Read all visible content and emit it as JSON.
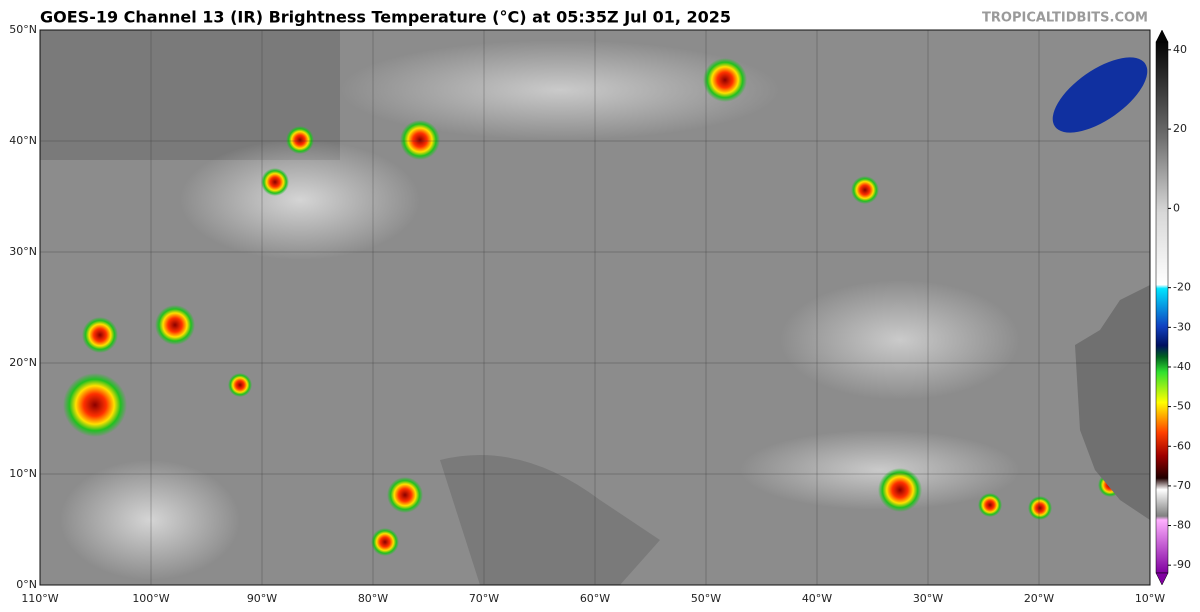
{
  "header": {
    "title": "GOES-19 Channel 13 (IR) Brightness Temperature (°C) at 05:35Z Jul 01, 2025",
    "credit": "TROPICALTIDBITS.COM"
  },
  "map": {
    "xlim": [
      -110,
      -10
    ],
    "ylim": [
      0,
      50
    ],
    "grid": true,
    "lat_labels": [
      {
        "value": 0,
        "label": "0°N"
      },
      {
        "value": 10,
        "label": "10°N"
      },
      {
        "value": 20,
        "label": "20°N"
      },
      {
        "value": 30,
        "label": "30°N"
      },
      {
        "value": 40,
        "label": "40°N"
      },
      {
        "value": 50,
        "label": "50°N"
      }
    ],
    "lon_labels": [
      {
        "value": -110,
        "label": "110°W"
      },
      {
        "value": -100,
        "label": "100°W"
      },
      {
        "value": -90,
        "label": "90°W"
      },
      {
        "value": -80,
        "label": "80°W"
      },
      {
        "value": -70,
        "label": "70°W"
      },
      {
        "value": -60,
        "label": "60°W"
      },
      {
        "value": -50,
        "label": "50°W"
      },
      {
        "value": -40,
        "label": "40°W"
      },
      {
        "value": -30,
        "label": "30°W"
      },
      {
        "value": -20,
        "label": "20°W"
      },
      {
        "value": -10,
        "label": "10°W"
      }
    ]
  },
  "colorbar": {
    "range": [
      -95,
      45
    ],
    "ticks": [
      40,
      20,
      0,
      -20,
      -30,
      -40,
      -50,
      -60,
      -70,
      -80,
      -90
    ],
    "stops": [
      {
        "value": 45,
        "color": "#050505"
      },
      {
        "value": 20,
        "color": "#6e6e6e"
      },
      {
        "value": 0,
        "color": "#d8d8d8"
      },
      {
        "value": -19,
        "color": "#ffffff"
      },
      {
        "value": -20,
        "color": "#00e5ff"
      },
      {
        "value": -30,
        "color": "#1040c0"
      },
      {
        "value": -35,
        "color": "#001060"
      },
      {
        "value": -38,
        "color": "#006020"
      },
      {
        "value": -42,
        "color": "#30e030"
      },
      {
        "value": -50,
        "color": "#ffff00"
      },
      {
        "value": -58,
        "color": "#ff4000"
      },
      {
        "value": -64,
        "color": "#a00000"
      },
      {
        "value": -70,
        "color": "#200000"
      },
      {
        "value": -73,
        "color": "#ffffff"
      },
      {
        "value": -80,
        "color": "#808080"
      },
      {
        "value": -81,
        "color": "#ffb0ff"
      },
      {
        "value": -95,
        "color": "#8000a0"
      }
    ]
  }
}
